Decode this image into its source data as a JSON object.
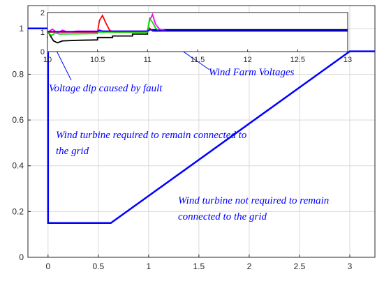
{
  "chart_data": [
    {
      "type": "line",
      "x_ticks": [
        "0",
        "0.5",
        "1",
        "1.5",
        "2",
        "2.5",
        "3"
      ],
      "y_ticks": [
        "0",
        "0.2",
        "0.4",
        "0.6",
        "0.8",
        "1"
      ],
      "xlim": [
        -0.2,
        3.25
      ],
      "ylim": [
        0,
        1.1
      ],
      "grid": true,
      "series": [
        {
          "color": "#0000ff",
          "points": [
            [
              -0.2,
              1.0
            ],
            [
              0.0,
              1.0
            ],
            [
              0.0,
              0.15
            ],
            [
              0.625,
              0.15
            ],
            [
              3.0,
              0.9
            ],
            [
              3.25,
              0.9
            ]
          ]
        }
      ],
      "annotations": [
        "Voltage dip caused by fault",
        "Wind turbine required to remain connected to",
        "the grid",
        "Wind turbine not required to remain",
        "connected to the grid",
        "Wind Farm Voltages"
      ]
    },
    {
      "type": "line",
      "x_ticks": [
        "10",
        "10.5",
        "11",
        "11.5",
        "12",
        "12.5",
        "13"
      ],
      "y_ticks": [
        "0",
        "1",
        "2"
      ],
      "xlim": [
        10,
        13
      ],
      "ylim": [
        0,
        2
      ],
      "series": [
        {
          "color": "#000000",
          "points": [
            [
              10.0,
              1.05
            ],
            [
              10.03,
              0.8
            ],
            [
              10.06,
              0.55
            ],
            [
              10.1,
              0.45
            ],
            [
              10.15,
              0.55
            ],
            [
              10.3,
              0.58
            ],
            [
              10.5,
              0.6
            ],
            [
              10.5,
              0.72
            ],
            [
              10.65,
              0.72
            ],
            [
              10.65,
              0.8
            ],
            [
              10.85,
              0.8
            ],
            [
              10.85,
              0.9
            ],
            [
              11.0,
              0.9
            ],
            [
              11.0,
              1.12
            ],
            [
              13.0,
              1.12
            ]
          ]
        },
        {
          "color": "#ff0000",
          "points": [
            [
              10.0,
              1.0
            ],
            [
              10.5,
              1.0
            ],
            [
              10.52,
              1.6
            ],
            [
              10.55,
              1.85
            ],
            [
              10.58,
              1.5
            ],
            [
              10.62,
              1.1
            ],
            [
              10.66,
              1.0
            ],
            [
              11.0,
              1.0
            ],
            [
              11.02,
              1.2
            ],
            [
              11.05,
              1.05
            ],
            [
              13.0,
              1.05
            ]
          ]
        },
        {
          "color": "#ff00ff",
          "points": [
            [
              10.0,
              1.0
            ],
            [
              10.05,
              1.15
            ],
            [
              10.1,
              0.95
            ],
            [
              10.15,
              1.1
            ],
            [
              10.2,
              1.0
            ],
            [
              10.3,
              1.05
            ],
            [
              10.5,
              1.05
            ],
            [
              11.0,
              1.05
            ],
            [
              11.02,
              1.6
            ],
            [
              11.05,
              1.9
            ],
            [
              11.08,
              1.4
            ],
            [
              11.12,
              1.15
            ],
            [
              11.2,
              1.05
            ],
            [
              13.0,
              1.05
            ]
          ]
        },
        {
          "color": "#00dd00",
          "points": [
            [
              10.0,
              1.0
            ],
            [
              10.04,
              0.82
            ],
            [
              10.08,
              0.96
            ],
            [
              10.12,
              0.9
            ],
            [
              10.5,
              0.92
            ],
            [
              10.5,
              1.0
            ],
            [
              11.0,
              1.0
            ],
            [
              11.02,
              1.7
            ],
            [
              11.05,
              1.5
            ],
            [
              11.08,
              1.2
            ],
            [
              11.12,
              1.05
            ],
            [
              13.0,
              1.05
            ]
          ]
        },
        {
          "color": "#0000ff",
          "points": [
            [
              10.0,
              1.02
            ],
            [
              10.5,
              1.02
            ],
            [
              10.52,
              1.1
            ],
            [
              10.55,
              1.05
            ],
            [
              11.0,
              1.05
            ],
            [
              11.03,
              1.12
            ],
            [
              11.08,
              1.06
            ],
            [
              13.0,
              1.06
            ]
          ]
        }
      ]
    }
  ]
}
